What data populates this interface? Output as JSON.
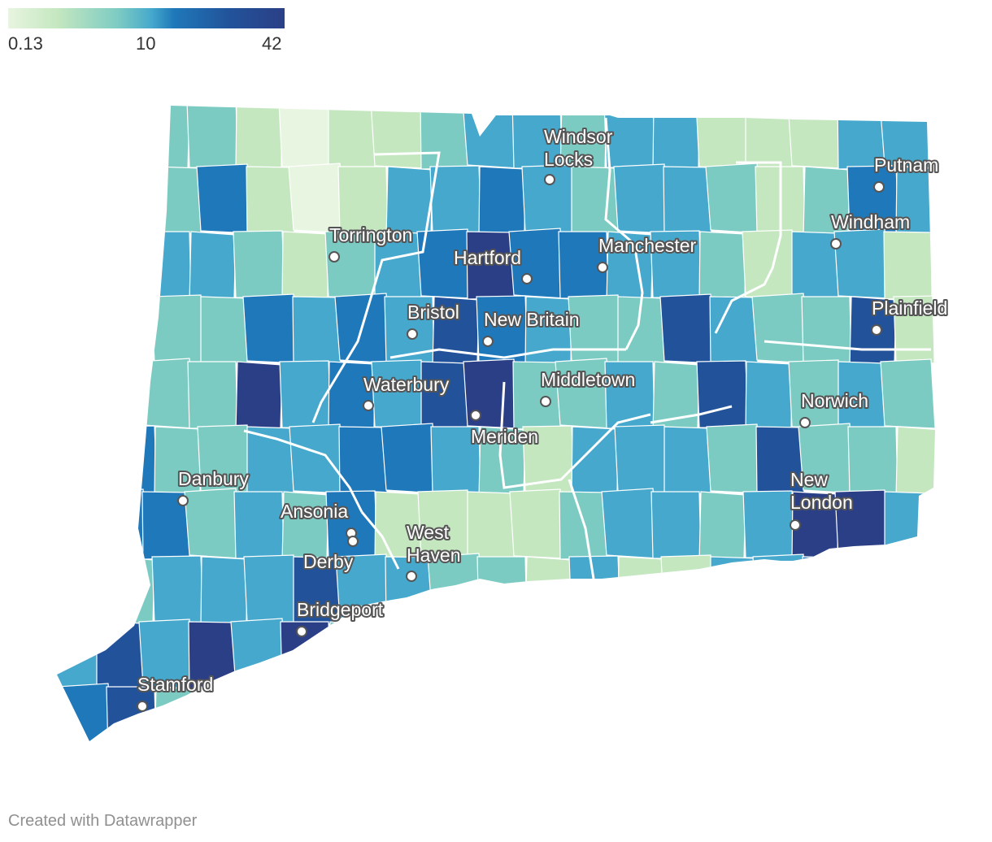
{
  "legend": {
    "ticks": [
      "0.13",
      "10",
      "42"
    ],
    "colors": [
      "#e8f5e0",
      "#c4e7c0",
      "#7ccbc3",
      "#45a8cc",
      "#1f78b9",
      "#22539a",
      "#2b3f86"
    ]
  },
  "map": {
    "region_fill_default": "#a8dcc4",
    "border_color": "#ffffff",
    "cities": [
      {
        "name": "Windsor Locks",
        "lines": [
          "Windsor",
          "Locks"
        ]
      },
      {
        "name": "Putnam",
        "lines": [
          "Putnam"
        ]
      },
      {
        "name": "Torrington",
        "lines": [
          "Torrington"
        ]
      },
      {
        "name": "Windham",
        "lines": [
          "Windham"
        ]
      },
      {
        "name": "Hartford",
        "lines": [
          "Hartford"
        ]
      },
      {
        "name": "Manchester",
        "lines": [
          "Manchester"
        ]
      },
      {
        "name": "Bristol",
        "lines": [
          "Bristol"
        ]
      },
      {
        "name": "New Britain",
        "lines": [
          "New Britain"
        ]
      },
      {
        "name": "Plainfield",
        "lines": [
          "Plainfield"
        ]
      },
      {
        "name": "Waterbury",
        "lines": [
          "Waterbury"
        ]
      },
      {
        "name": "Middletown",
        "lines": [
          "Middletown"
        ]
      },
      {
        "name": "Norwich",
        "lines": [
          "Norwich"
        ]
      },
      {
        "name": "Meriden",
        "lines": [
          "Meriden"
        ]
      },
      {
        "name": "Danbury",
        "lines": [
          "Danbury"
        ]
      },
      {
        "name": "New London",
        "lines": [
          "New",
          "London"
        ]
      },
      {
        "name": "Ansonia",
        "lines": [
          "Ansonia"
        ]
      },
      {
        "name": "West Haven",
        "lines": [
          "West",
          "Haven"
        ]
      },
      {
        "name": "Derby",
        "lines": [
          "Derby"
        ]
      },
      {
        "name": "Bridgeport",
        "lines": [
          "Bridgeport"
        ]
      },
      {
        "name": "Stamford",
        "lines": [
          "Stamford"
        ]
      }
    ]
  },
  "footer": {
    "credit": "Created with Datawrapper"
  }
}
